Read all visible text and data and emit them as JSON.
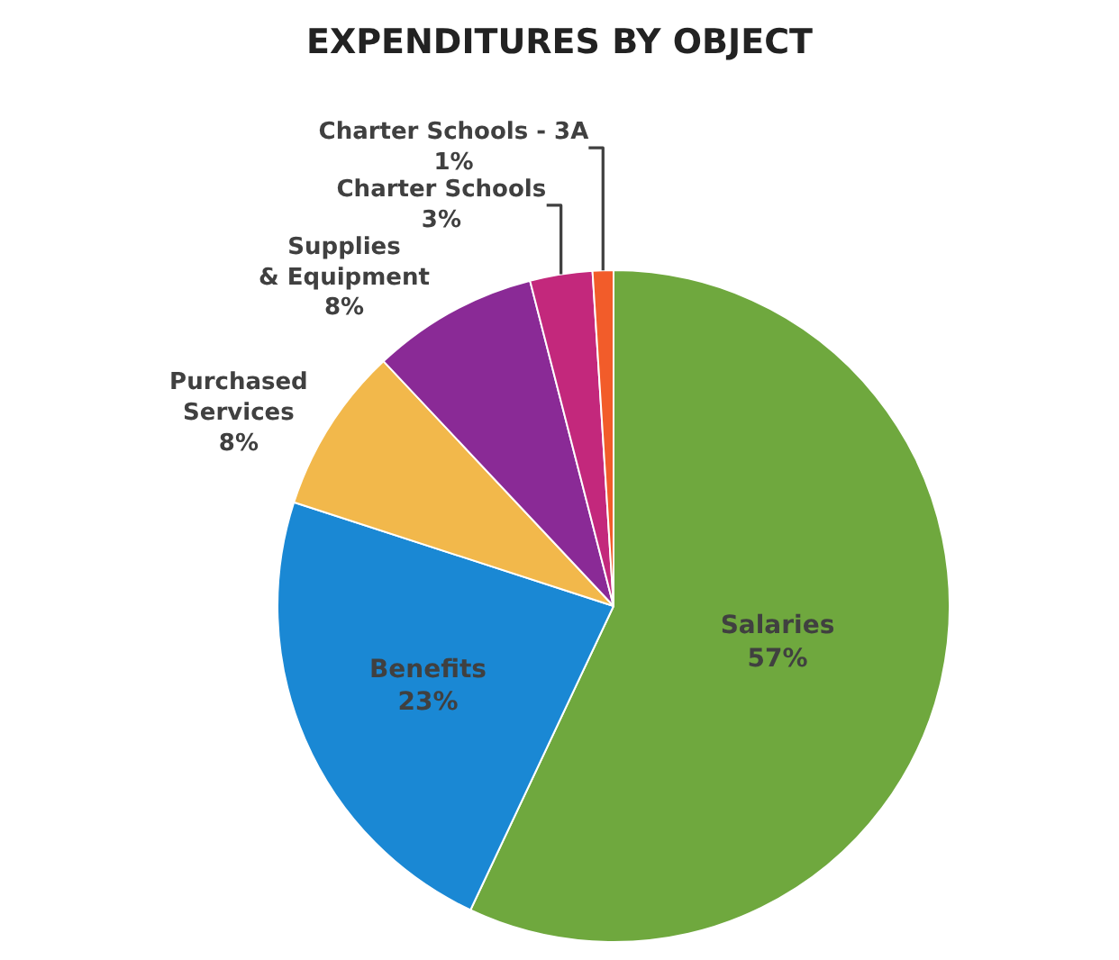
{
  "chart_data": {
    "type": "pie",
    "title": "EXPENDITURES BY OBJECT",
    "categories": [
      "Salaries",
      "Benefits",
      "Purchased Services",
      "Supplies & Equipment",
      "Charter Schools",
      "Charter Schools - 3A"
    ],
    "values": [
      57,
      23,
      8,
      8,
      3,
      1
    ],
    "value_labels": [
      "57%",
      "23%",
      "8%",
      "8%",
      "3%",
      "1%"
    ],
    "colors": [
      "#6fa83e",
      "#1a88d4",
      "#f2b84b",
      "#8a2a96",
      "#c3287c",
      "#f25c2a"
    ],
    "legend": false
  }
}
